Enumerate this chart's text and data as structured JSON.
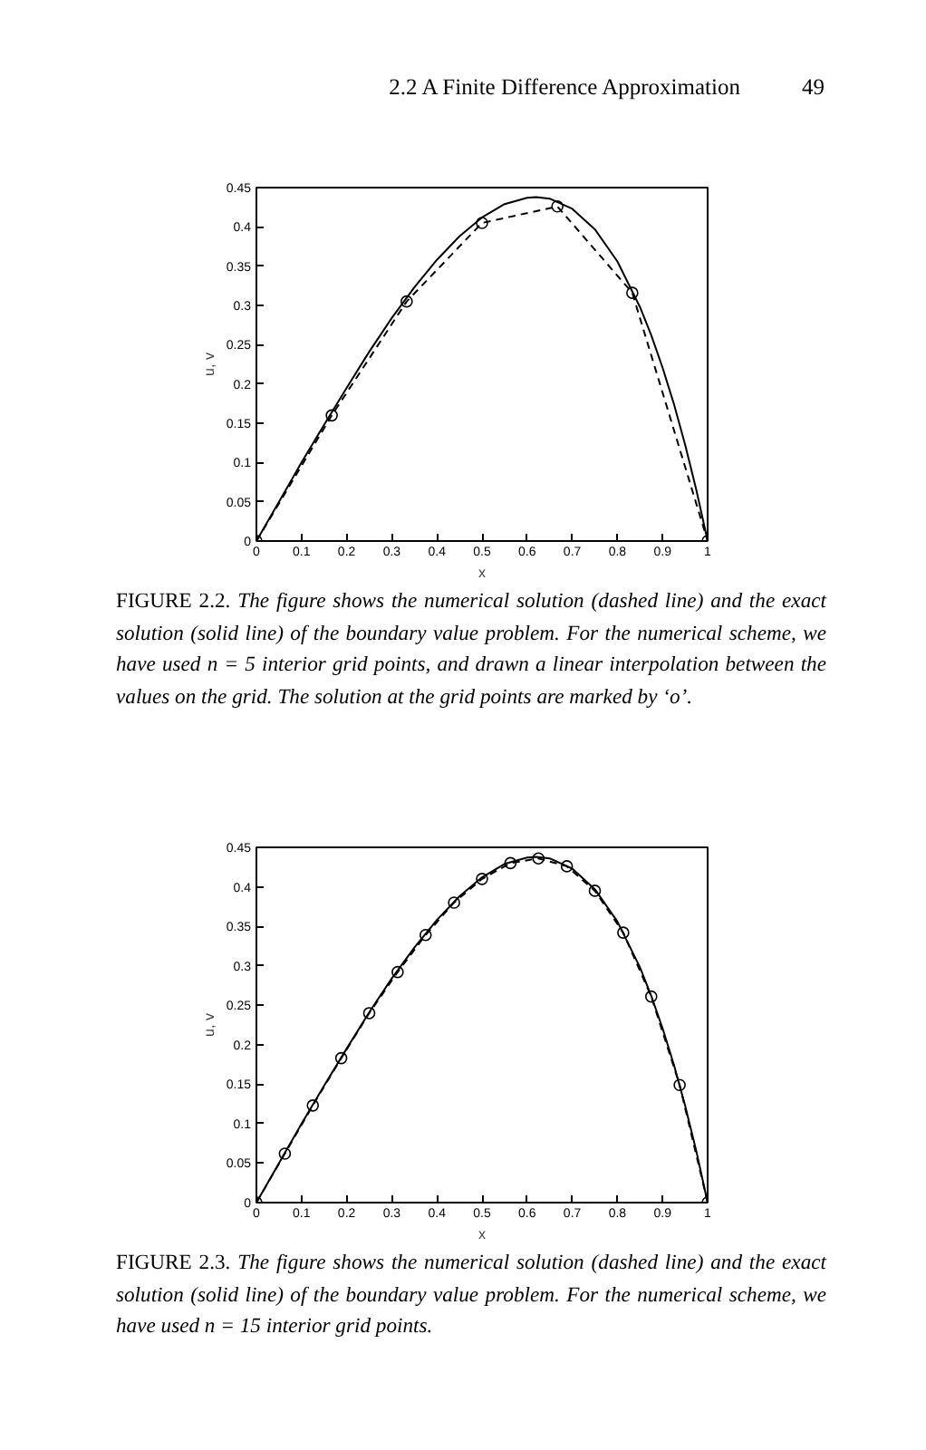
{
  "chart_data": [
    {
      "type": "line",
      "xlabel": "x",
      "ylabel": "u, v",
      "xlim": [
        0,
        1
      ],
      "ylim": [
        0,
        0.45
      ],
      "xticks": [
        0,
        0.1,
        0.2,
        0.3,
        0.4,
        0.5,
        0.6,
        0.7,
        0.8,
        0.9,
        1
      ],
      "yticks": [
        0,
        0.05,
        0.1,
        0.15,
        0.2,
        0.25,
        0.3,
        0.35,
        0.4,
        0.45
      ],
      "annotations": [
        "2.2 A Finite Difference Approximation",
        "49",
        "FIGURE 2.2. The figure shows the numerical solution (dashed line) and the exact solution (solid line) of the boundary value problem. For the numerical scheme, we have used n = 5 interior grid points, and drawn a linear interpolation between the values on the grid. The solution at the grid points are marked by ‘o’."
      ],
      "series": [
        {
          "color": "#000000",
          "line_style": "solid",
          "x": [
            0,
            0.05,
            0.1,
            0.15,
            0.2,
            0.25,
            0.3,
            0.35,
            0.4,
            0.45,
            0.5,
            0.55,
            0.6,
            0.62,
            0.65,
            0.7,
            0.75,
            0.8,
            0.85,
            0.875,
            0.9,
            0.925,
            0.95,
            0.975,
            1
          ],
          "values": [
            0,
            0.05,
            0.1,
            0.148,
            0.195,
            0.241,
            0.284,
            0.323,
            0.358,
            0.388,
            0.412,
            0.429,
            0.437,
            0.438,
            0.436,
            0.423,
            0.397,
            0.356,
            0.298,
            0.262,
            0.221,
            0.175,
            0.123,
            0.065,
            0
          ]
        },
        {
          "color": "#000000",
          "line_style": "dashed",
          "marker": "circle",
          "x": [
            0,
            0.167,
            0.333,
            0.5,
            0.667,
            0.833,
            1
          ],
          "values": [
            0,
            0.16,
            0.305,
            0.405,
            0.426,
            0.316,
            0
          ]
        }
      ]
    },
    {
      "type": "line",
      "xlabel": "x",
      "ylabel": "u, v",
      "xlim": [
        0,
        1
      ],
      "ylim": [
        0,
        0.45
      ],
      "xticks": [
        0,
        0.1,
        0.2,
        0.3,
        0.4,
        0.5,
        0.6,
        0.7,
        0.8,
        0.9,
        1
      ],
      "yticks": [
        0,
        0.05,
        0.1,
        0.15,
        0.2,
        0.25,
        0.3,
        0.35,
        0.4,
        0.45
      ],
      "annotations": [
        "FIGURE 2.3. The figure shows the numerical solution (dashed line) and the exact solution (solid line) of the boundary value problem. For the numerical scheme, we have used n = 15 interior grid points."
      ],
      "series": [
        {
          "color": "#000000",
          "line_style": "solid",
          "x": [
            0,
            0.05,
            0.1,
            0.15,
            0.2,
            0.25,
            0.3,
            0.35,
            0.4,
            0.45,
            0.5,
            0.55,
            0.6,
            0.62,
            0.65,
            0.7,
            0.75,
            0.8,
            0.85,
            0.875,
            0.9,
            0.925,
            0.95,
            0.975,
            1
          ],
          "values": [
            0,
            0.05,
            0.1,
            0.148,
            0.195,
            0.241,
            0.284,
            0.323,
            0.358,
            0.388,
            0.412,
            0.429,
            0.437,
            0.438,
            0.436,
            0.423,
            0.397,
            0.356,
            0.298,
            0.262,
            0.221,
            0.175,
            0.123,
            0.065,
            0
          ]
        },
        {
          "color": "#000000",
          "line_style": "dashed",
          "marker": "circle",
          "x": [
            0,
            0.063,
            0.125,
            0.188,
            0.25,
            0.313,
            0.375,
            0.438,
            0.5,
            0.563,
            0.625,
            0.688,
            0.75,
            0.813,
            0.875,
            0.938,
            1
          ],
          "values": [
            0,
            0.062,
            0.123,
            0.183,
            0.24,
            0.292,
            0.339,
            0.38,
            0.41,
            0.43,
            0.436,
            0.426,
            0.395,
            0.342,
            0.261,
            0.149,
            0
          ]
        }
      ]
    }
  ]
}
